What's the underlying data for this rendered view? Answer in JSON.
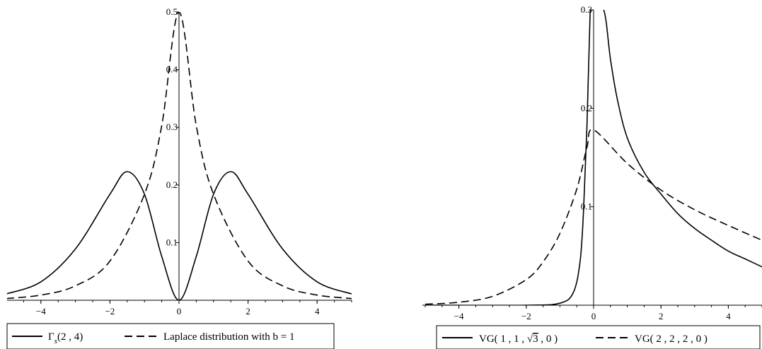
{
  "chart_data": [
    {
      "type": "line",
      "xlim": [
        -5,
        5
      ],
      "ylim": [
        0,
        0.5
      ],
      "x_ticks": [
        "−4",
        "−2",
        "0",
        "2",
        "4"
      ],
      "y_ticks": [
        "0.1",
        "0.2",
        "0.3",
        "0.4",
        "0.5"
      ],
      "grid": false,
      "legend_position": "bottom",
      "series": [
        {
          "name": "Γs(2 , 4)",
          "style": "solid",
          "x": [
            -5,
            -4,
            -3,
            -2,
            -1.5,
            -1,
            -0.5,
            0,
            0.5,
            1,
            1.5,
            2,
            3,
            4,
            5
          ],
          "y": [
            0.011,
            0.032,
            0.089,
            0.184,
            0.223,
            0.184,
            0.076,
            0.0,
            0.076,
            0.184,
            0.223,
            0.184,
            0.089,
            0.032,
            0.011
          ]
        },
        {
          "name": "Laplace distribution with b = 1",
          "style": "dashed",
          "x": [
            -5,
            -4,
            -3,
            -2,
            -1,
            -0.5,
            0,
            0.5,
            1,
            2,
            3,
            4,
            5
          ],
          "y": [
            0.003,
            0.009,
            0.025,
            0.068,
            0.184,
            0.303,
            0.5,
            0.303,
            0.184,
            0.068,
            0.025,
            0.009,
            0.003
          ]
        }
      ],
      "legend": {
        "solid_label": "Γ",
        "solid_sub": "s",
        "solid_args": "(2 , 4)",
        "dashed_label": "Laplace distribution with b = 1"
      }
    },
    {
      "type": "line",
      "xlim": [
        -5,
        5
      ],
      "ylim": [
        0,
        0.3
      ],
      "x_ticks": [
        "−4",
        "−2",
        "0",
        "2",
        "4"
      ],
      "y_ticks": [
        "0.1",
        "0.2",
        "0.3"
      ],
      "grid": false,
      "legend_position": "bottom",
      "series": [
        {
          "name": "VG( 1 , 1 , √3 , 0 )",
          "style": "solid",
          "x": [
            -5,
            -2,
            -1,
            -0.6,
            -0.4,
            -0.3,
            -0.2,
            -0.1,
            -0.05,
            0.3,
            0.5,
            0.7,
            1,
            1.5,
            2,
            2.5,
            3,
            3.5,
            4,
            4.5,
            5
          ],
          "y": [
            0.0,
            0.0,
            0.002,
            0.013,
            0.045,
            0.095,
            0.18,
            0.3,
            0.3,
            0.3,
            0.25,
            0.21,
            0.17,
            0.135,
            0.113,
            0.093,
            0.078,
            0.066,
            0.055,
            0.047,
            0.039
          ]
        },
        {
          "name": "VG( 2 , 2 , 2 , 0 )",
          "style": "dashed",
          "x": [
            -5,
            -4,
            -3,
            -2,
            -1.5,
            -1,
            -0.5,
            -0.2,
            0,
            1,
            2,
            3,
            4,
            5
          ],
          "y": [
            0.001,
            0.003,
            0.009,
            0.026,
            0.044,
            0.073,
            0.118,
            0.16,
            0.178,
            0.144,
            0.117,
            0.097,
            0.081,
            0.066
          ]
        }
      ],
      "legend": {
        "solid_label": "VG( 1 , 1 , ",
        "solid_sqrt": "3",
        "solid_tail": " , 0 )",
        "dashed_label": "VG( 2 , 2 , 2 , 0 )"
      }
    }
  ]
}
